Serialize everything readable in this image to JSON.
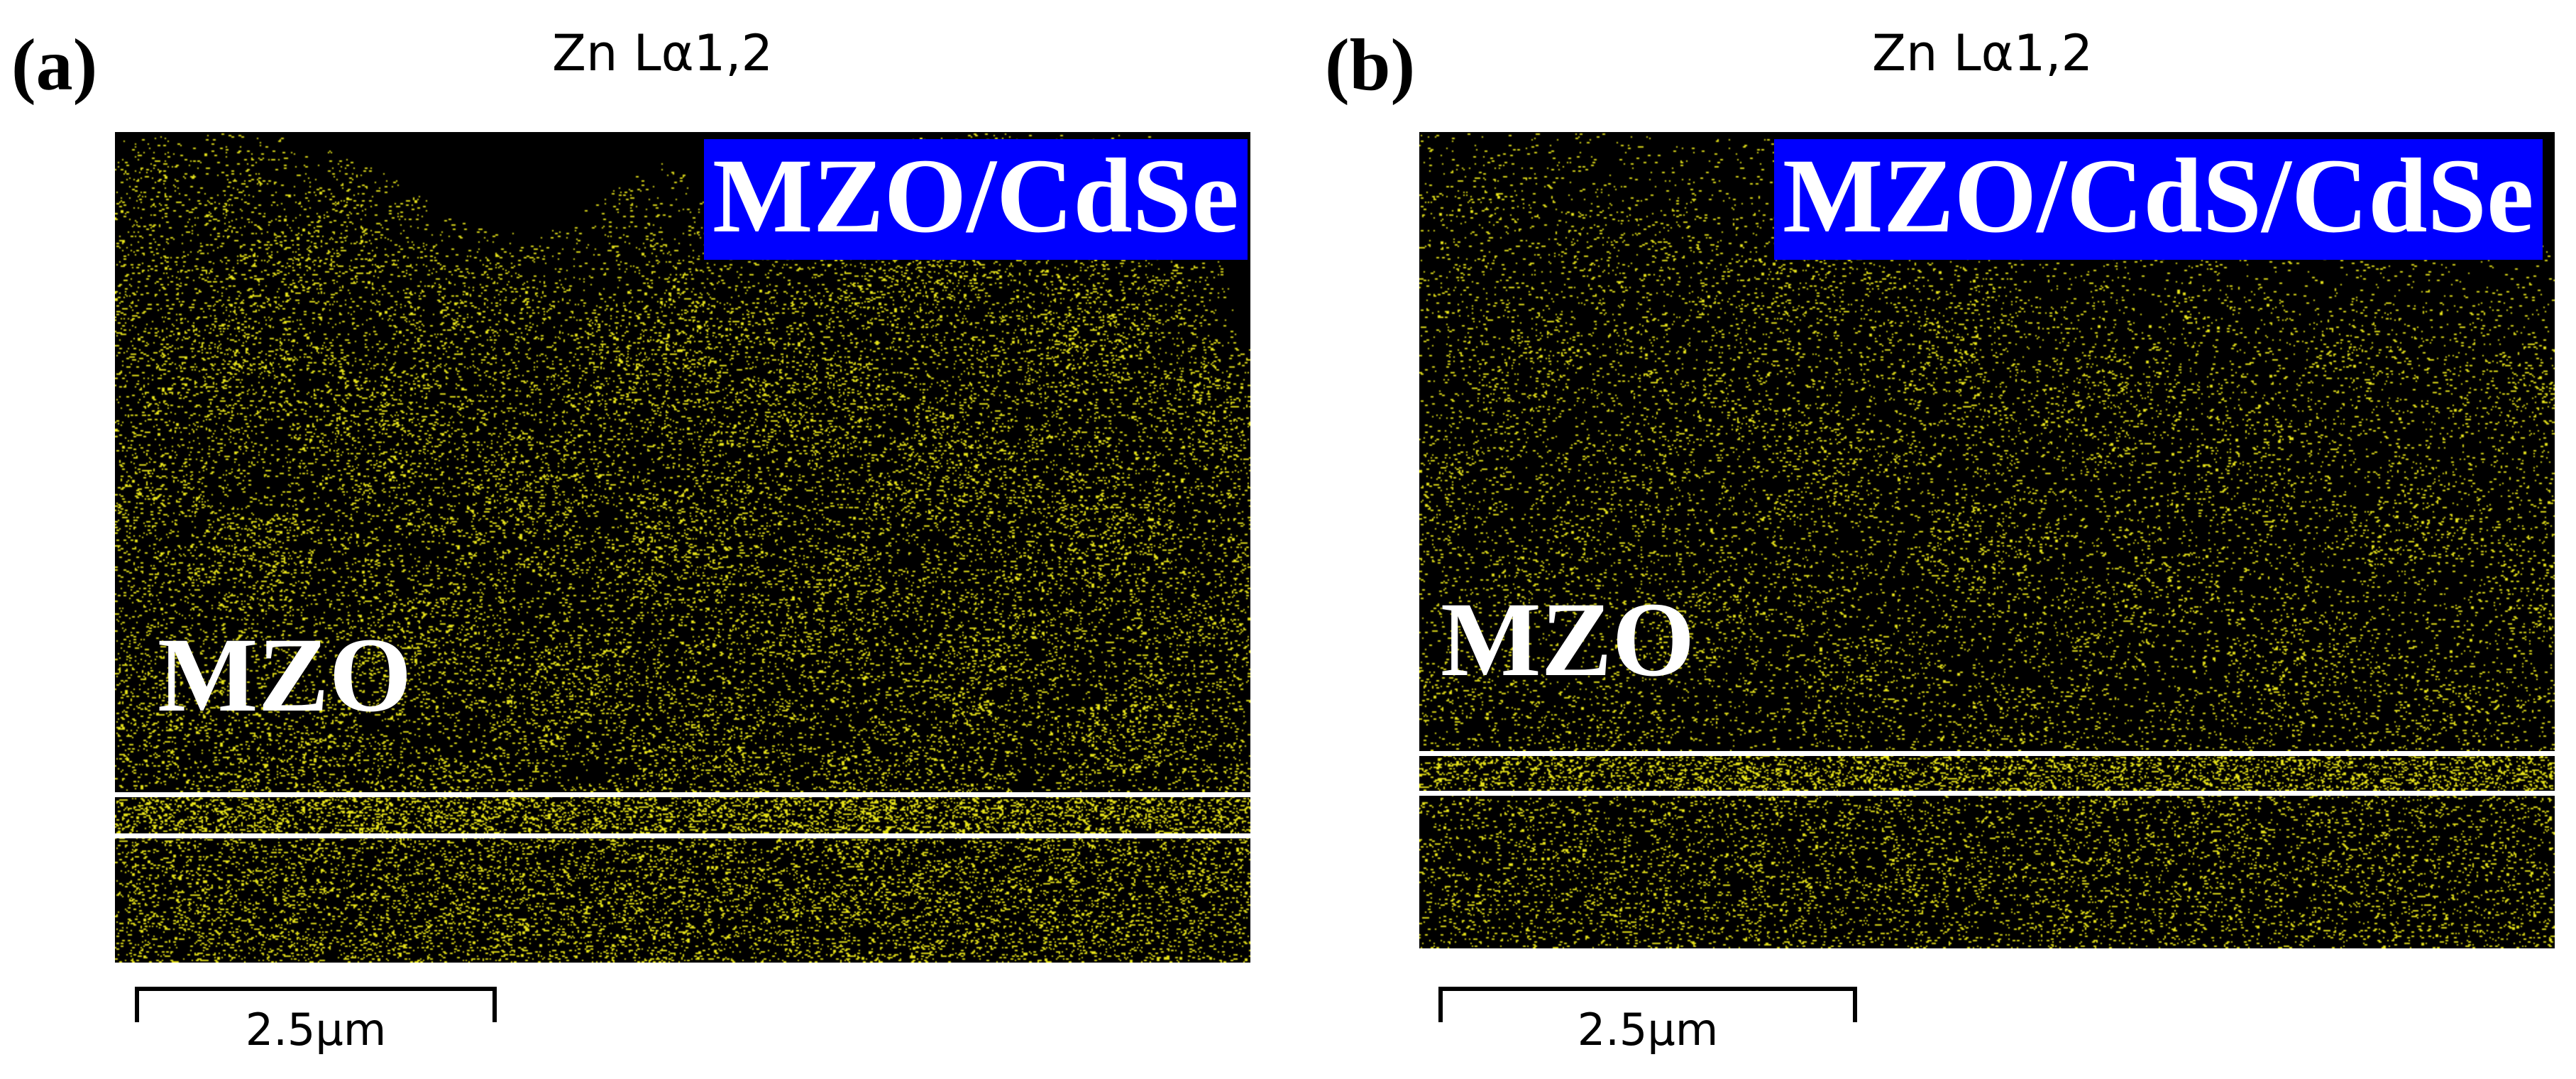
{
  "dot_color": "#e6e21a",
  "label_background": "#0000ff",
  "panels": [
    {
      "letter": "(a)",
      "map_title": "Zn Lα1,2",
      "sample_label": "MZO/CdSe",
      "layer_label": "MZO",
      "scale_bar_label": "2.5μm",
      "region_density": {
        "upper_film": 0.45,
        "interface_band": 1.0,
        "lower_film": 0.55
      }
    },
    {
      "letter": "(b)",
      "map_title": "Zn Lα1,2",
      "sample_label": "MZO/CdS/CdSe",
      "layer_label": "MZO",
      "scale_bar_label": "2.5μm",
      "region_density": {
        "upper_film": 0.28,
        "interface_band": 0.9,
        "lower_film": 0.38
      }
    }
  ]
}
